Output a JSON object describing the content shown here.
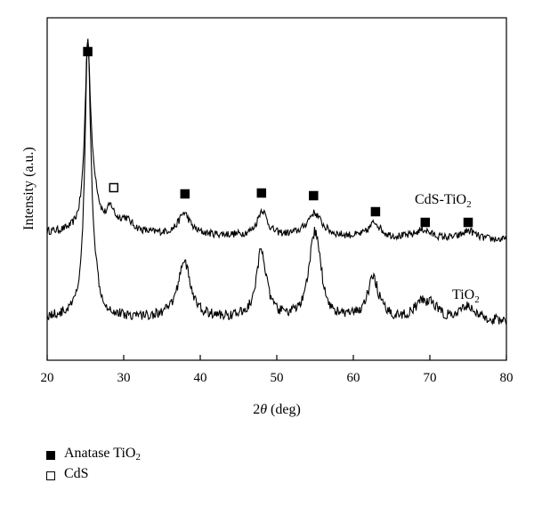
{
  "chart_data": {
    "type": "line",
    "title": "",
    "xlabel": "2θ (deg)",
    "xlabel_parts": [
      "2",
      "θ",
      " (deg)"
    ],
    "ylabel": "Intensity (a.u.)",
    "xlim": [
      20,
      80
    ],
    "xticks": [
      20,
      30,
      40,
      50,
      60,
      70,
      80
    ],
    "grid": false,
    "series": [
      {
        "name": "CdS-TiO2",
        "label_parts": [
          "CdS-TiO",
          "2"
        ],
        "relative_intensity_peaks": [
          {
            "x": 25.3,
            "height": 0.86,
            "width": 0.45
          },
          {
            "x": 26.2,
            "height": 0.12,
            "width": 0.7
          },
          {
            "x": 28.3,
            "height": 0.09,
            "width": 0.6
          },
          {
            "x": 30.2,
            "height": 0.06,
            "width": 1.2
          },
          {
            "x": 37.9,
            "height": 0.1,
            "width": 0.9
          },
          {
            "x": 48.1,
            "height": 0.12,
            "width": 0.75
          },
          {
            "x": 54.9,
            "height": 0.11,
            "width": 1.2
          },
          {
            "x": 62.8,
            "height": 0.07,
            "width": 0.9
          },
          {
            "x": 69.1,
            "height": 0.04,
            "width": 1.2
          },
          {
            "x": 75.1,
            "height": 0.04,
            "width": 1.0
          }
        ]
      },
      {
        "name": "TiO2",
        "label_parts": [
          "TiO",
          "2"
        ],
        "relative_intensity_peaks": [
          {
            "x": 25.3,
            "height": 0.92,
            "width": 0.45
          },
          {
            "x": 26.0,
            "height": 0.1,
            "width": 0.7
          },
          {
            "x": 37.9,
            "height": 0.2,
            "width": 0.95
          },
          {
            "x": 48.0,
            "height": 0.24,
            "width": 0.75
          },
          {
            "x": 54.8,
            "height": 0.22,
            "width": 0.8
          },
          {
            "x": 55.4,
            "height": 0.12,
            "width": 0.7
          },
          {
            "x": 62.6,
            "height": 0.14,
            "width": 0.9
          },
          {
            "x": 68.9,
            "height": 0.05,
            "width": 1.1
          },
          {
            "x": 70.3,
            "height": 0.04,
            "width": 1.0
          },
          {
            "x": 75.0,
            "height": 0.05,
            "width": 1.0
          }
        ]
      }
    ],
    "peak_markers": [
      {
        "x": 25.3,
        "phase": "Anatase TiO2",
        "filled": true
      },
      {
        "x": 28.7,
        "phase": "CdS",
        "filled": false
      },
      {
        "x": 38.0,
        "phase": "Anatase TiO2",
        "filled": true
      },
      {
        "x": 48.0,
        "phase": "Anatase TiO2",
        "filled": true
      },
      {
        "x": 54.8,
        "phase": "Anatase TiO2",
        "filled": true
      },
      {
        "x": 62.9,
        "phase": "Anatase TiO2",
        "filled": true
      },
      {
        "x": 69.4,
        "phase": "Anatase TiO2",
        "filled": true
      },
      {
        "x": 75.0,
        "phase": "Anatase TiO2",
        "filled": true
      }
    ],
    "legend": {
      "placement": "bottom-left",
      "items": [
        {
          "label_parts": [
            "Anatase TiO",
            "2"
          ],
          "marker": "filled-square"
        },
        {
          "label_parts": [
            "CdS",
            ""
          ],
          "marker": "open-square"
        }
      ]
    }
  }
}
